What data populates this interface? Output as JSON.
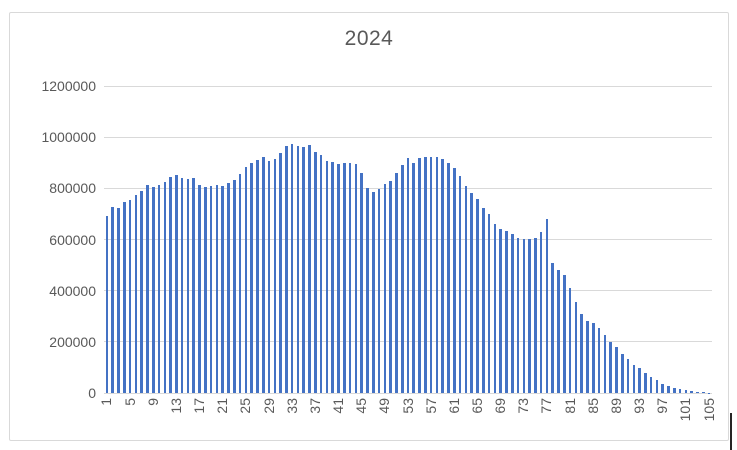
{
  "chart_data": {
    "type": "bar",
    "title": "2024",
    "xlabel": "",
    "ylabel": "",
    "ylim": [
      0,
      1200000
    ],
    "y_tick_step": 200000,
    "y_tick_labels": [
      "0",
      "200000",
      "400000",
      "600000",
      "800000",
      "1000000",
      "1200000"
    ],
    "x_range": [
      1,
      105
    ],
    "x_tick_labels": [
      "1",
      "5",
      "9",
      "13",
      "17",
      "21",
      "25",
      "29",
      "33",
      "37",
      "41",
      "45",
      "49",
      "53",
      "57",
      "61",
      "65",
      "69",
      "73",
      "77",
      "81",
      "85",
      "89",
      "93",
      "97",
      "101",
      "105"
    ],
    "x_tick_start": 1,
    "x_tick_step": 4,
    "grid": true,
    "legend": "none",
    "bar_color": "#4472C4",
    "gridline_color": "#D9D9D9",
    "text_color": "#595959",
    "categories": [
      1,
      2,
      3,
      4,
      5,
      6,
      7,
      8,
      9,
      10,
      11,
      12,
      13,
      14,
      15,
      16,
      17,
      18,
      19,
      20,
      21,
      22,
      23,
      24,
      25,
      26,
      27,
      28,
      29,
      30,
      31,
      32,
      33,
      34,
      35,
      36,
      37,
      38,
      39,
      40,
      41,
      42,
      43,
      44,
      45,
      46,
      47,
      48,
      49,
      50,
      51,
      52,
      53,
      54,
      55,
      56,
      57,
      58,
      59,
      60,
      61,
      62,
      63,
      64,
      65,
      66,
      67,
      68,
      69,
      70,
      71,
      72,
      73,
      74,
      75,
      76,
      77,
      78,
      79,
      80,
      81,
      82,
      83,
      84,
      85,
      86,
      87,
      88,
      89,
      90,
      91,
      92,
      93,
      94,
      95,
      96,
      97,
      98,
      99,
      100,
      101,
      102,
      103,
      104,
      105
    ],
    "values": [
      690000,
      727000,
      724000,
      748000,
      755000,
      773000,
      790000,
      812000,
      806000,
      812000,
      823000,
      845000,
      852000,
      839000,
      836000,
      841000,
      815000,
      806000,
      809000,
      815000,
      809000,
      822000,
      831000,
      855000,
      885000,
      901000,
      912000,
      921000,
      906000,
      916000,
      940000,
      965000,
      972000,
      967000,
      963000,
      968000,
      944000,
      931000,
      908000,
      902000,
      896000,
      901000,
      900000,
      897000,
      861000,
      801000,
      786000,
      796000,
      817000,
      829000,
      859000,
      893000,
      917000,
      901000,
      920000,
      922000,
      923000,
      922000,
      913000,
      900000,
      880000,
      850000,
      810000,
      782000,
      757000,
      725000,
      700000,
      660000,
      643000,
      634000,
      621000,
      605000,
      603000,
      603000,
      605000,
      631000,
      680000,
      508000,
      479000,
      460000,
      410000,
      354000,
      310000,
      281000,
      273000,
      255000,
      227000,
      200000,
      180000,
      152000,
      132000,
      110000,
      96000,
      77000,
      62000,
      50000,
      37000,
      27000,
      18000,
      14000,
      10000,
      7000,
      4000,
      2500,
      1500
    ]
  }
}
